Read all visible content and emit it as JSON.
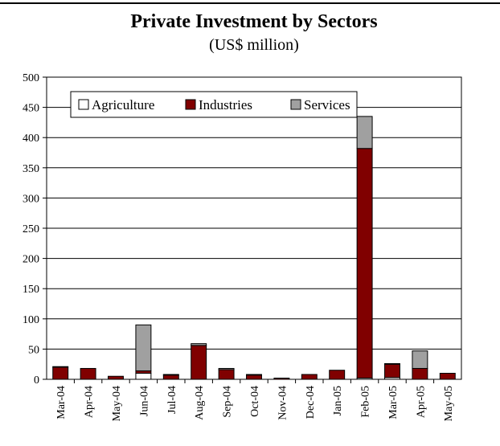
{
  "chart_data": {
    "type": "bar",
    "stacked": true,
    "title": "Private Investment by Sectors",
    "subtitle": "(US$ million)",
    "categories": [
      "Mar-04",
      "Apr-04",
      "May-04",
      "Jun-04",
      "Jul-04",
      "Aug-04",
      "Sep-04",
      "Oct-04",
      "Nov-04",
      "Dec-04",
      "Jan-05",
      "Feb-05",
      "Mar-05",
      "Apr-05",
      "May-05"
    ],
    "series": [
      {
        "name": "Agriculture",
        "color": "#ffffff",
        "values": [
          0,
          0,
          0,
          10,
          0,
          0,
          0,
          0,
          0,
          0,
          0,
          2,
          3,
          0,
          0
        ]
      },
      {
        "name": "Industries",
        "color": "#800000",
        "values": [
          20,
          18,
          5,
          4,
          7,
          56,
          16,
          7,
          2,
          8,
          15,
          380,
          22,
          18,
          10
        ]
      },
      {
        "name": "Services",
        "color": "#a0a0a0",
        "values": [
          1,
          0,
          0,
          76,
          1,
          3,
          2,
          1,
          0,
          0,
          0,
          53,
          1,
          29,
          0
        ]
      }
    ],
    "ylim": [
      0,
      500
    ],
    "yticks": [
      0,
      50,
      100,
      150,
      200,
      250,
      300,
      350,
      400,
      450,
      500
    ],
    "grid": true,
    "legend_position": "top-left"
  }
}
